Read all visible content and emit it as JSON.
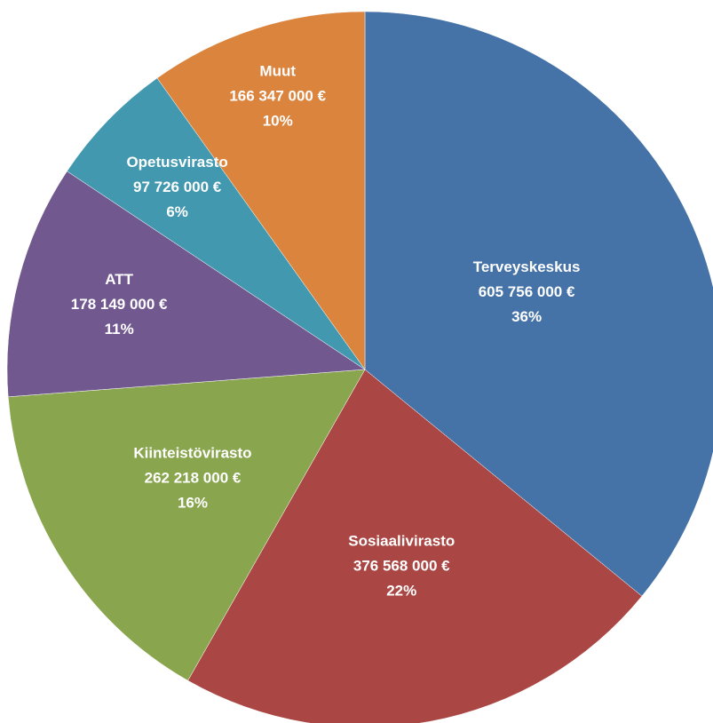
{
  "chart_data": {
    "type": "pie",
    "categories": [
      "Terveyskeskus",
      "Sosiaalivirasto",
      "Kiinteistövirasto",
      "ATT",
      "Opetusvirasto",
      "Muut"
    ],
    "values": [
      605756000,
      376568000,
      262218000,
      178149000,
      97726000,
      166347000
    ],
    "value_labels": [
      "605 756 000 €",
      "376 568 000 €",
      "262 218 000 €",
      "178 149 000 €",
      "97 726 000 €",
      "166 347 000 €"
    ],
    "percents": [
      36,
      22,
      16,
      11,
      6,
      10
    ],
    "percent_labels": [
      "36%",
      "22%",
      "16%",
      "11%",
      "6%",
      "10%"
    ],
    "colors": [
      "#4572a7",
      "#aa4643",
      "#89a54e",
      "#71588f",
      "#4198af",
      "#db843d"
    ]
  }
}
